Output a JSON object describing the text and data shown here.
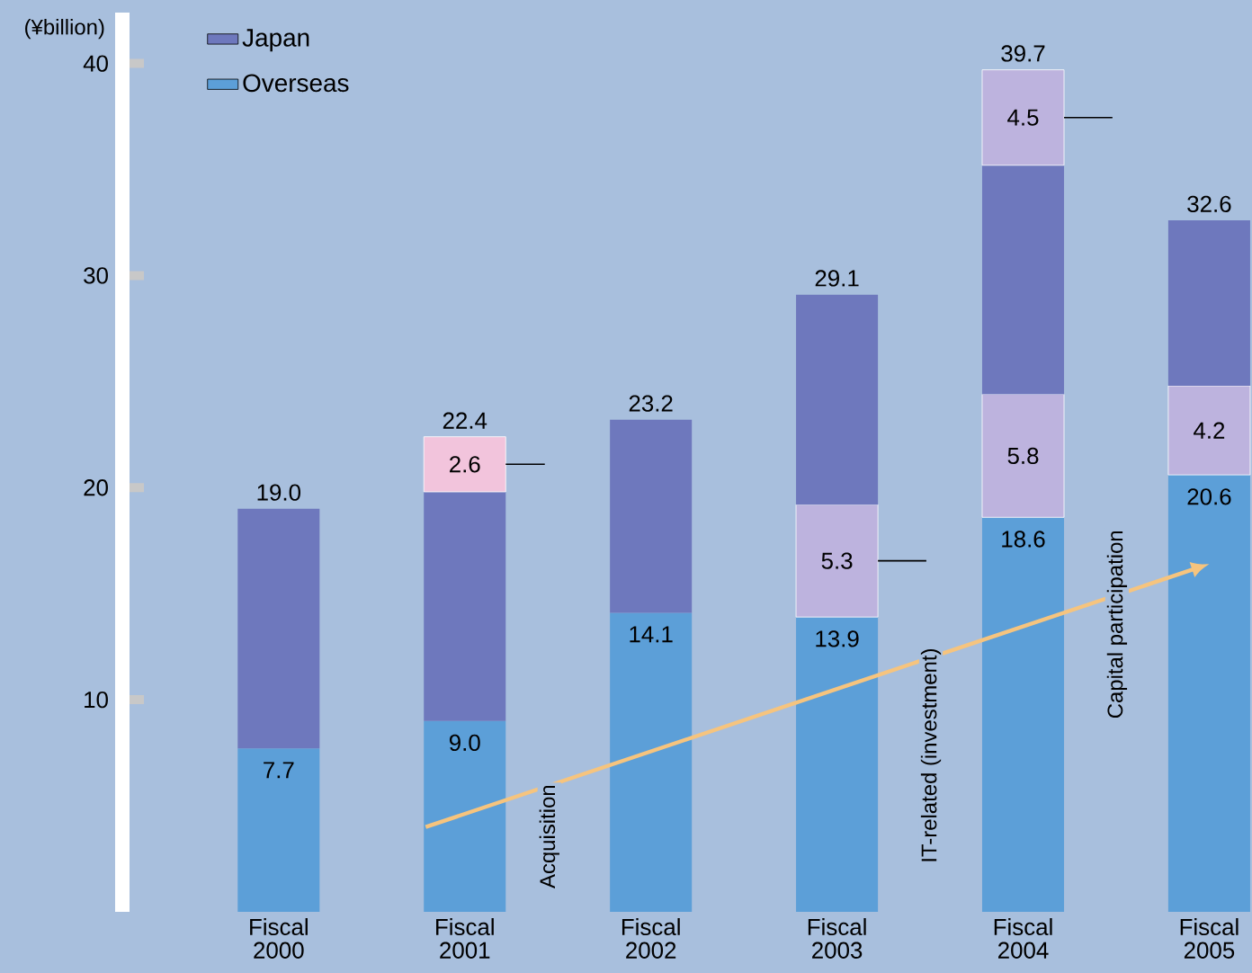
{
  "chart_data": {
    "type": "bar",
    "stacked": true,
    "ylabel": "(¥billion)",
    "categories": [
      "Fiscal 2000",
      "Fiscal 2001",
      "Fiscal 2002",
      "Fiscal 2003",
      "Fiscal 2004",
      "Fiscal 2005"
    ],
    "series": [
      {
        "name": "Overseas",
        "color": "#5c9fd8",
        "values": [
          7.7,
          9.0,
          14.1,
          13.9,
          18.6,
          20.6
        ],
        "value_labels": [
          "7.7",
          "9.0",
          "14.1",
          "13.9",
          "18.6",
          "20.6"
        ]
      },
      {
        "color": "#bdb3de",
        "values": [
          null,
          null,
          null,
          5.3,
          5.8,
          4.2
        ],
        "value_labels": [
          null,
          null,
          null,
          "5.3",
          "5.8",
          "4.2"
        ]
      },
      {
        "name": "Japan",
        "color": "#6e78bd",
        "values": [
          11.3,
          10.8,
          9.1,
          9.9,
          10.8,
          7.8
        ]
      },
      {
        "colors": [
          null,
          "#f2c4dc",
          null,
          null,
          "#bdb3de",
          null
        ],
        "values": [
          null,
          2.6,
          null,
          null,
          4.5,
          null
        ],
        "value_labels": [
          null,
          "2.6",
          null,
          null,
          "4.5",
          null
        ]
      }
    ],
    "totals": [
      "19.0",
      "22.4",
      "23.2",
      "29.1",
      "39.7",
      "32.6"
    ],
    "ylim": [
      0,
      42.4
    ],
    "yticks": [
      10,
      20,
      30,
      40
    ],
    "grid": false,
    "legend": "top left",
    "annotations": [
      "Acquisition",
      "IT-related (investment)",
      "Capital participation"
    ]
  }
}
